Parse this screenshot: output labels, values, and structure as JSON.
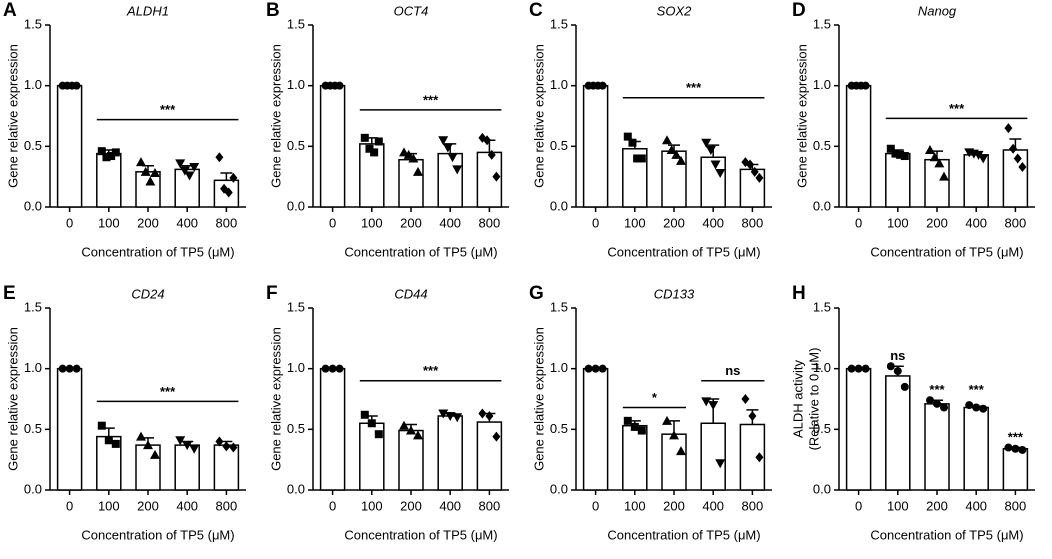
{
  "chart_data": [
    {
      "type": "bar",
      "panel": "A",
      "title": "ALDH1",
      "ylabel": "Gene relative expression",
      "xlabel": "Concentration of TP5 (μM)",
      "categories": [
        "0",
        "100",
        "200",
        "400",
        "800"
      ],
      "values": [
        1.0,
        0.44,
        0.29,
        0.31,
        0.22
      ],
      "errors": [
        0,
        0.03,
        0.05,
        0.03,
        0.06
      ],
      "points": [
        [
          1,
          1,
          1,
          1
        ],
        [
          0.46,
          0.41,
          0.42,
          0.45
        ],
        [
          0.37,
          0.29,
          0.21,
          0.28
        ],
        [
          0.36,
          0.3,
          0.26,
          0.33
        ],
        [
          0.41,
          0.15,
          0.12,
          0.24
        ]
      ],
      "markers": [
        "circle",
        "square",
        "triangle",
        "triangle-down",
        "diamond"
      ],
      "color": "#000000",
      "ylim": [
        0,
        1.5
      ],
      "yticks": [
        {
          "value": 0,
          "label": "0.0"
        },
        0.5,
        {
          "value": 1,
          "label": "1.0"
        },
        1.5
      ],
      "annotations": [
        {
          "text": "***",
          "from": 1,
          "to": 4,
          "y": 0.72
        }
      ]
    },
    {
      "type": "bar",
      "panel": "B",
      "title": "OCT4",
      "ylabel": "Gene relative expression",
      "xlabel": "Concentration of TP5 (μM)",
      "categories": [
        "0",
        "100",
        "200",
        "400",
        "800"
      ],
      "values": [
        1.0,
        0.52,
        0.39,
        0.44,
        0.45
      ],
      "errors": [
        0,
        0.05,
        0.05,
        0.08,
        0.1
      ],
      "points": [
        [
          1,
          1,
          1,
          1
        ],
        [
          0.57,
          0.48,
          0.45,
          0.54
        ],
        [
          0.45,
          0.43,
          0.4,
          0.29
        ],
        [
          0.55,
          0.49,
          0.41,
          0.31
        ],
        [
          0.57,
          0.55,
          0.43,
          0.25
        ]
      ],
      "markers": [
        "circle",
        "square",
        "triangle",
        "triangle-down",
        "diamond"
      ],
      "color": "#000000",
      "ylim": [
        0,
        1.5
      ],
      "yticks": [
        {
          "value": 0,
          "label": "0.0"
        },
        0.5,
        {
          "value": 1,
          "label": "1.0"
        },
        1.5
      ],
      "annotations": [
        {
          "text": "***",
          "from": 1,
          "to": 4,
          "y": 0.8
        }
      ]
    },
    {
      "type": "bar",
      "panel": "C",
      "title": "SOX2",
      "ylabel": "Gene relative expression",
      "xlabel": "Concentration of TP5 (μM)",
      "categories": [
        "0",
        "100",
        "200",
        "400",
        "800"
      ],
      "values": [
        1.0,
        0.48,
        0.46,
        0.41,
        0.31
      ],
      "errors": [
        0,
        0.06,
        0.05,
        0.1,
        0.04
      ],
      "points": [
        [
          1,
          1,
          1,
          1
        ],
        [
          0.58,
          0.53,
          0.4,
          0.4
        ],
        [
          0.55,
          0.47,
          0.43,
          0.38
        ],
        [
          0.53,
          0.47,
          0.35,
          0.28
        ],
        [
          0.37,
          0.35,
          0.29,
          0.24
        ]
      ],
      "markers": [
        "circle",
        "square",
        "triangle",
        "triangle-down",
        "diamond"
      ],
      "color": "#000000",
      "ylim": [
        0,
        1.5
      ],
      "yticks": [
        {
          "value": 0,
          "label": "0.0"
        },
        0.5,
        {
          "value": 1,
          "label": "1.0"
        },
        1.5
      ],
      "annotations": [
        {
          "text": "***",
          "from": 1,
          "to": 4,
          "y": 0.9
        }
      ]
    },
    {
      "type": "bar",
      "panel": "D",
      "title": "Nanog",
      "ylabel": "Gene relative expression",
      "xlabel": "Concentration of TP5 (μM)",
      "categories": [
        "0",
        "100",
        "200",
        "400",
        "800"
      ],
      "values": [
        1.0,
        0.44,
        0.39,
        0.43,
        0.47
      ],
      "errors": [
        0,
        0.03,
        0.07,
        0.02,
        0.09
      ],
      "points": [
        [
          1,
          1,
          1,
          1
        ],
        [
          0.48,
          0.44,
          0.43,
          0.42
        ],
        [
          0.47,
          0.41,
          0.36,
          0.25
        ],
        [
          0.45,
          0.44,
          0.43,
          0.4
        ],
        [
          0.65,
          0.48,
          0.4,
          0.33
        ]
      ],
      "markers": [
        "circle",
        "square",
        "triangle",
        "triangle-down",
        "diamond"
      ],
      "color": "#000000",
      "ylim": [
        0,
        1.5
      ],
      "yticks": [
        {
          "value": 0,
          "label": "0.0"
        },
        0.5,
        {
          "value": 1,
          "label": "1.0"
        },
        1.5
      ],
      "annotations": [
        {
          "text": "***",
          "from": 1,
          "to": 4,
          "y": 0.73
        }
      ]
    },
    {
      "type": "bar",
      "panel": "E",
      "title": "CD24",
      "ylabel": "Gene relative expression",
      "xlabel": "Concentration of TP5 (μM)",
      "categories": [
        "0",
        "100",
        "200",
        "400",
        "800"
      ],
      "values": [
        1.0,
        0.44,
        0.37,
        0.37,
        0.37
      ],
      "errors": [
        0,
        0.07,
        0.06,
        0.03,
        0.03
      ],
      "points": [
        [
          1,
          1,
          1
        ],
        [
          0.53,
          0.41,
          0.38
        ],
        [
          0.44,
          0.37,
          0.29
        ],
        [
          0.41,
          0.37,
          0.34
        ],
        [
          0.4,
          0.36,
          0.35
        ]
      ],
      "markers": [
        "circle",
        "square",
        "triangle",
        "triangle-down",
        "diamond"
      ],
      "color": "#000000",
      "ylim": [
        0,
        1.5
      ],
      "yticks": [
        {
          "value": 0,
          "label": "0.0"
        },
        0.5,
        {
          "value": 1,
          "label": "1.0"
        },
        1.5
      ],
      "annotations": [
        {
          "text": "***",
          "from": 1,
          "to": 4,
          "y": 0.73
        }
      ]
    },
    {
      "type": "bar",
      "panel": "F",
      "title": "CD44",
      "ylabel": "Gene relative expression",
      "xlabel": "Concentration of TP5 (μM)",
      "categories": [
        "0",
        "100",
        "200",
        "400",
        "800"
      ],
      "values": [
        1.0,
        0.55,
        0.49,
        0.61,
        0.56
      ],
      "errors": [
        0,
        0.06,
        0.05,
        0.02,
        0.07
      ],
      "points": [
        [
          1,
          1,
          1
        ],
        [
          0.62,
          0.55,
          0.46
        ],
        [
          0.53,
          0.49,
          0.45
        ],
        [
          0.63,
          0.61,
          0.6
        ],
        [
          0.63,
          0.61,
          0.44
        ]
      ],
      "markers": [
        "circle",
        "square",
        "triangle",
        "triangle-down",
        "diamond"
      ],
      "color": "#000000",
      "ylim": [
        0,
        1.5
      ],
      "yticks": [
        {
          "value": 0,
          "label": "0.0"
        },
        0.5,
        {
          "value": 1,
          "label": "1.0"
        },
        1.5
      ],
      "annotations": [
        {
          "text": "***",
          "from": 1,
          "to": 4,
          "y": 0.9
        }
      ]
    },
    {
      "type": "bar",
      "panel": "G",
      "title": "CD133",
      "ylabel": "Gene relative expression",
      "xlabel": "Concentration of TP5 (μM)",
      "categories": [
        "0",
        "100",
        "200",
        "400",
        "800"
      ],
      "values": [
        1.0,
        0.53,
        0.46,
        0.55,
        0.54
      ],
      "errors": [
        0,
        0.04,
        0.11,
        0.2,
        0.12
      ],
      "points": [
        [
          1,
          1,
          1
        ],
        [
          0.57,
          0.52,
          0.49
        ],
        [
          0.57,
          0.45,
          0.32
        ],
        [
          0.73,
          0.7,
          0.22
        ],
        [
          0.75,
          0.61,
          0.27
        ]
      ],
      "markers": [
        "circle",
        "square",
        "triangle",
        "triangle-down",
        "diamond"
      ],
      "color": "#000000",
      "ylim": [
        0,
        1.5
      ],
      "yticks": [
        {
          "value": 0,
          "label": "0.0"
        },
        0.5,
        {
          "value": 1,
          "label": "1.0"
        },
        1.5
      ],
      "annotations": [
        {
          "text": "*",
          "from": 1,
          "to": 2,
          "y": 0.68
        },
        {
          "text": "ns",
          "from": 3,
          "to": 4,
          "y": 0.9
        }
      ]
    },
    {
      "type": "bar",
      "panel": "H",
      "ylabel": [
        "ALDH activity",
        "(Relative to 0 μM)"
      ],
      "xlabel": "Concentration of TP5 (μM)",
      "categories": [
        "0",
        "100",
        "200",
        "400",
        "800"
      ],
      "values": [
        1.0,
        0.94,
        0.71,
        0.68,
        0.34
      ],
      "errors": [
        0,
        0.08,
        0.03,
        0.01,
        0.01
      ],
      "points": [
        [
          1,
          1,
          1
        ],
        [
          1.02,
          0.98,
          0.85
        ],
        [
          0.74,
          0.71,
          0.68
        ],
        [
          0.7,
          0.68,
          0.67
        ],
        [
          0.35,
          0.34,
          0.33
        ]
      ],
      "markers": [
        "circle",
        "circle",
        "circle",
        "circle",
        "circle"
      ],
      "color": "#000000",
      "ylim": [
        0,
        1.5
      ],
      "yticks": [
        {
          "value": 0,
          "label": "0.0"
        },
        0.5,
        {
          "value": 1,
          "label": "1.0"
        },
        1.5
      ],
      "annotations": [
        {
          "text": "ns",
          "from": 1,
          "to": 1,
          "y": 1.1
        },
        {
          "text": "***",
          "from": 2,
          "to": 2,
          "y": 0.82
        },
        {
          "text": "***",
          "from": 3,
          "to": 3,
          "y": 0.82
        },
        {
          "text": "***",
          "from": 4,
          "to": 4,
          "y": 0.43
        }
      ]
    }
  ]
}
